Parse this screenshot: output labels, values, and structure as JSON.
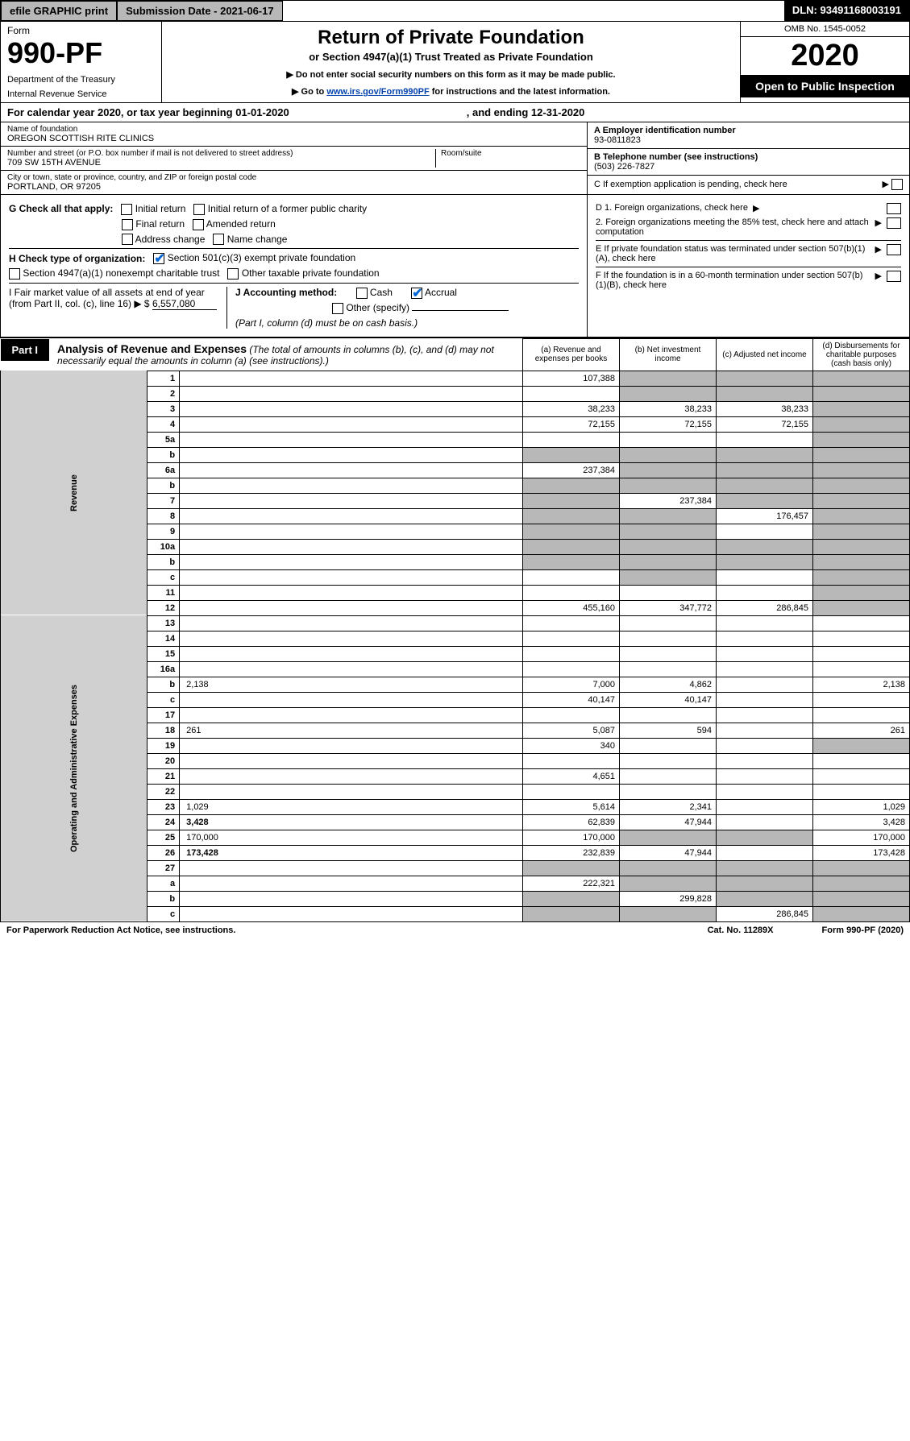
{
  "topbar": {
    "efile": "efile GRAPHIC print",
    "submission": "Submission Date - 2021-06-17",
    "dln": "DLN: 93491168003191"
  },
  "header": {
    "form_label": "Form",
    "form_no": "990-PF",
    "dept1": "Department of the Treasury",
    "dept2": "Internal Revenue Service",
    "title": "Return of Private Foundation",
    "subtitle": "or Section 4947(a)(1) Trust Treated as Private Foundation",
    "note1": "▶ Do not enter social security numbers on this form as it may be made public.",
    "note2_pre": "▶ Go to ",
    "note2_link": "www.irs.gov/Form990PF",
    "note2_post": " for instructions and the latest information.",
    "omb": "OMB No. 1545-0052",
    "year": "2020",
    "open": "Open to Public Inspection"
  },
  "calbar": {
    "text1": "For calendar year 2020, or tax year beginning 01-01-2020",
    "text2": ", and ending 12-31-2020"
  },
  "info": {
    "name_lbl": "Name of foundation",
    "name": "OREGON SCOTTISH RITE CLINICS",
    "addr_lbl": "Number and street (or P.O. box number if mail is not delivered to street address)",
    "addr": "709 SW 15TH AVENUE",
    "room_lbl": "Room/suite",
    "city_lbl": "City or town, state or province, country, and ZIP or foreign postal code",
    "city": "PORTLAND, OR  97205",
    "ein_lbl": "A Employer identification number",
    "ein": "93-0811823",
    "tel_lbl": "B Telephone number (see instructions)",
    "tel": "(503) 226-7827",
    "c_lbl": "C If exemption application is pending, check here"
  },
  "checks": {
    "g_lbl": "G Check all that apply:",
    "g1": "Initial return",
    "g2": "Initial return of a former public charity",
    "g3": "Final return",
    "g4": "Amended return",
    "g5": "Address change",
    "g6": "Name change",
    "h_lbl": "H Check type of organization:",
    "h1": "Section 501(c)(3) exempt private foundation",
    "h2": "Section 4947(a)(1) nonexempt charitable trust",
    "h3": "Other taxable private foundation",
    "i_lbl": "I Fair market value of all assets at end of year (from Part II, col. (c), line 16) ▶ $",
    "i_val": "6,557,080",
    "j_lbl": "J Accounting method:",
    "j1": "Cash",
    "j2": "Accrual",
    "j3": "Other (specify)",
    "j_note": "(Part I, column (d) must be on cash basis.)",
    "d1": "D 1. Foreign organizations, check here",
    "d2": "2. Foreign organizations meeting the 85% test, check here and attach computation",
    "e": "E  If private foundation status was terminated under section 507(b)(1)(A), check here",
    "f": "F  If the foundation is in a 60-month termination under section 507(b)(1)(B), check here"
  },
  "part1": {
    "tab": "Part I",
    "title": "Analysis of Revenue and Expenses",
    "title_note": "(The total of amounts in columns (b), (c), and (d) may not necessarily equal the amounts in column (a) (see instructions).)",
    "col_a": "(a)   Revenue and expenses per books",
    "col_b": "(b)   Net investment income",
    "col_c": "(c)   Adjusted net income",
    "col_d": "(d)  Disbursements for charitable purposes (cash basis only)"
  },
  "side_rev": "Revenue",
  "side_exp": "Operating and Administrative Expenses",
  "rows": [
    {
      "n": "1",
      "d": "",
      "a": "107,388",
      "b": "",
      "c": "",
      "sb": true,
      "sc": true,
      "sd": true
    },
    {
      "n": "2",
      "d": "",
      "a": "",
      "b": "",
      "c": "",
      "sb": true,
      "sc": true,
      "sd": true
    },
    {
      "n": "3",
      "d": "",
      "a": "38,233",
      "b": "38,233",
      "c": "38,233",
      "sd": true
    },
    {
      "n": "4",
      "d": "",
      "a": "72,155",
      "b": "72,155",
      "c": "72,155",
      "sd": true
    },
    {
      "n": "5a",
      "d": "",
      "a": "",
      "b": "",
      "c": "",
      "sd": true
    },
    {
      "n": "b",
      "d": "",
      "a": "",
      "b": "",
      "c": "",
      "sa": true,
      "sb": true,
      "sc": true,
      "sd": true
    },
    {
      "n": "6a",
      "d": "",
      "a": "237,384",
      "b": "",
      "c": "",
      "sb": true,
      "sc": true,
      "sd": true
    },
    {
      "n": "b",
      "d": "",
      "a": "",
      "b": "",
      "c": "",
      "sa": true,
      "sb": true,
      "sc": true,
      "sd": true
    },
    {
      "n": "7",
      "d": "",
      "a": "",
      "b": "237,384",
      "c": "",
      "sa": true,
      "sc": true,
      "sd": true
    },
    {
      "n": "8",
      "d": "",
      "a": "",
      "b": "",
      "c": "176,457",
      "sa": true,
      "sb": true,
      "sd": true
    },
    {
      "n": "9",
      "d": "",
      "a": "",
      "b": "",
      "c": "",
      "sa": true,
      "sb": true,
      "sd": true
    },
    {
      "n": "10a",
      "d": "",
      "a": "",
      "b": "",
      "c": "",
      "sa": true,
      "sb": true,
      "sc": true,
      "sd": true
    },
    {
      "n": "b",
      "d": "",
      "a": "",
      "b": "",
      "c": "",
      "sa": true,
      "sb": true,
      "sc": true,
      "sd": true
    },
    {
      "n": "c",
      "d": "",
      "a": "",
      "b": "",
      "c": "",
      "sb": true,
      "sd": true
    },
    {
      "n": "11",
      "d": "",
      "a": "",
      "b": "",
      "c": "",
      "sd": true
    },
    {
      "n": "12",
      "d": "",
      "a": "455,160",
      "b": "347,772",
      "c": "286,845",
      "bold": true,
      "sd": true
    },
    {
      "n": "13",
      "d": "",
      "a": "",
      "b": "",
      "c": ""
    },
    {
      "n": "14",
      "d": "",
      "a": "",
      "b": "",
      "c": ""
    },
    {
      "n": "15",
      "d": "",
      "a": "",
      "b": "",
      "c": ""
    },
    {
      "n": "16a",
      "d": "",
      "a": "",
      "b": "",
      "c": ""
    },
    {
      "n": "b",
      "d": "2,138",
      "a": "7,000",
      "b": "4,862",
      "c": ""
    },
    {
      "n": "c",
      "d": "",
      "a": "40,147",
      "b": "40,147",
      "c": ""
    },
    {
      "n": "17",
      "d": "",
      "a": "",
      "b": "",
      "c": ""
    },
    {
      "n": "18",
      "d": "261",
      "a": "5,087",
      "b": "594",
      "c": ""
    },
    {
      "n": "19",
      "d": "",
      "a": "340",
      "b": "",
      "c": "",
      "sd": true
    },
    {
      "n": "20",
      "d": "",
      "a": "",
      "b": "",
      "c": ""
    },
    {
      "n": "21",
      "d": "",
      "a": "4,651",
      "b": "",
      "c": ""
    },
    {
      "n": "22",
      "d": "",
      "a": "",
      "b": "",
      "c": ""
    },
    {
      "n": "23",
      "d": "1,029",
      "a": "5,614",
      "b": "2,341",
      "c": ""
    },
    {
      "n": "24",
      "d": "3,428",
      "a": "62,839",
      "b": "47,944",
      "c": "",
      "bold": true
    },
    {
      "n": "25",
      "d": "170,000",
      "a": "170,000",
      "b": "",
      "c": "",
      "sb": true,
      "sc": true
    },
    {
      "n": "26",
      "d": "173,428",
      "a": "232,839",
      "b": "47,944",
      "c": "",
      "bold": true
    },
    {
      "n": "27",
      "d": "",
      "a": "",
      "b": "",
      "c": "",
      "sa": true,
      "sb": true,
      "sc": true,
      "sd": true
    },
    {
      "n": "a",
      "d": "",
      "a": "222,321",
      "b": "",
      "c": "",
      "bold": true,
      "sb": true,
      "sc": true,
      "sd": true
    },
    {
      "n": "b",
      "d": "",
      "a": "",
      "b": "299,828",
      "c": "",
      "bold": true,
      "sa": true,
      "sc": true,
      "sd": true
    },
    {
      "n": "c",
      "d": "",
      "a": "",
      "b": "",
      "c": "286,845",
      "bold": true,
      "sa": true,
      "sb": true,
      "sd": true
    }
  ],
  "footer": {
    "left": "For Paperwork Reduction Act Notice, see instructions.",
    "mid": "Cat. No. 11289X",
    "right": "Form 990-PF (2020)"
  }
}
